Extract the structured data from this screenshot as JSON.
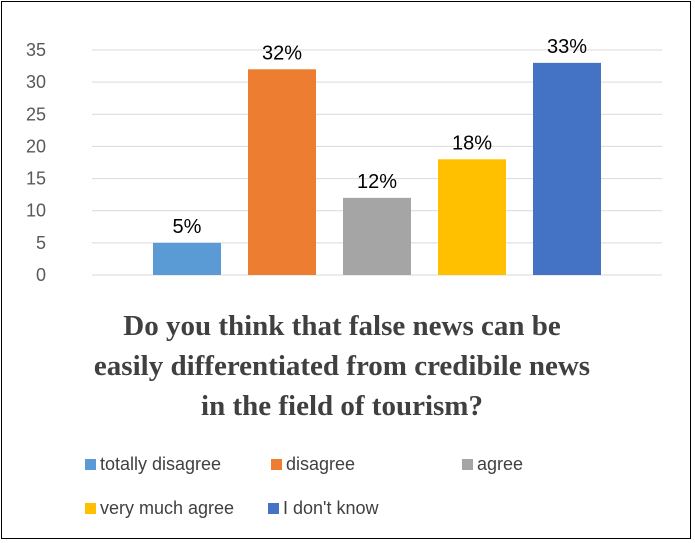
{
  "chart_data": {
    "type": "bar",
    "title": "Do you think that false news can be easily differentiated from credibile news in the field of tourism?",
    "title_lines": [
      "Do you think that false news can be",
      "easily differentiated from credibile news",
      "in the field of tourism?"
    ],
    "categories": [
      "totally disagree",
      "disagree",
      "agree",
      "very much agree",
      "I don't know"
    ],
    "values": [
      5,
      32,
      12,
      18,
      33
    ],
    "data_labels": [
      "5%",
      "32%",
      "12%",
      "18%",
      "33%"
    ],
    "colors": [
      "#5B9BD5",
      "#ED7D31",
      "#A5A5A5",
      "#FFC000",
      "#4472C4"
    ],
    "ylim": [
      0,
      35
    ],
    "yticks": [
      0,
      5,
      10,
      15,
      20,
      25,
      30,
      35
    ],
    "grid": true,
    "legend_position": "bottom",
    "xlabel": "",
    "ylabel": ""
  }
}
